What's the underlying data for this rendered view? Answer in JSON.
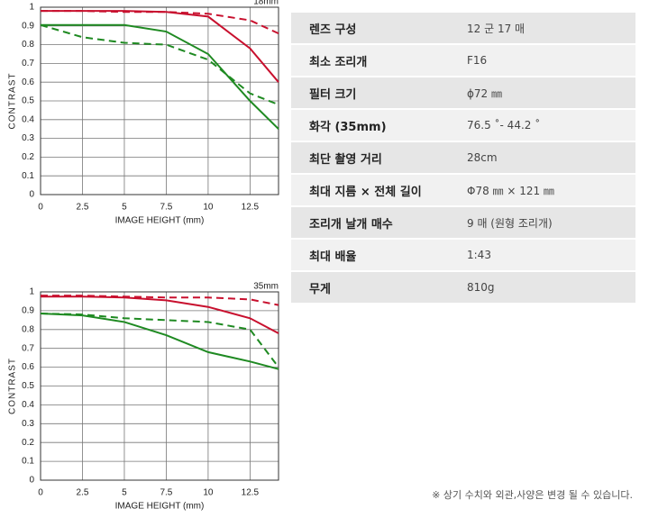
{
  "chart_data": [
    {
      "type": "line",
      "title": "18mm",
      "xlabel": "IMAGE HEIGHT (mm)",
      "ylabel": "CONTRAST",
      "x": [
        0,
        2.5,
        5,
        7.5,
        10,
        12.5,
        14.2
      ],
      "xlim": [
        0,
        14.2
      ],
      "xticks": [
        0,
        2.5,
        5,
        7.5,
        10,
        12.5
      ],
      "ylim": [
        0,
        1
      ],
      "yticks": [
        0,
        0.1,
        0.2,
        0.3,
        0.4,
        0.5,
        0.6,
        0.7,
        0.8,
        0.9,
        1
      ],
      "grid": true,
      "series": [
        {
          "color": "#c8102e",
          "dashed": false,
          "values": [
            0.98,
            0.98,
            0.98,
            0.975,
            0.95,
            0.78,
            0.6
          ]
        },
        {
          "color": "#c8102e",
          "dashed": true,
          "values": [
            0.98,
            0.98,
            0.975,
            0.975,
            0.965,
            0.93,
            0.86
          ]
        },
        {
          "color": "#1f8a22",
          "dashed": false,
          "values": [
            0.905,
            0.905,
            0.905,
            0.87,
            0.75,
            0.5,
            0.35
          ]
        },
        {
          "color": "#1f8a22",
          "dashed": true,
          "values": [
            0.905,
            0.84,
            0.81,
            0.8,
            0.72,
            0.54,
            0.48
          ]
        }
      ]
    },
    {
      "type": "line",
      "title": "35mm",
      "xlabel": "IMAGE HEIGHT (mm)",
      "ylabel": "CONTRAST",
      "x": [
        0,
        2.5,
        5,
        7.5,
        10,
        12.5,
        14.2
      ],
      "xlim": [
        0,
        14.2
      ],
      "xticks": [
        0,
        2.5,
        5,
        7.5,
        10,
        12.5
      ],
      "ylim": [
        0,
        1
      ],
      "yticks": [
        0,
        0.1,
        0.2,
        0.3,
        0.4,
        0.5,
        0.6,
        0.7,
        0.8,
        0.9,
        1
      ],
      "grid": true,
      "series": [
        {
          "color": "#c8102e",
          "dashed": false,
          "values": [
            0.975,
            0.975,
            0.97,
            0.955,
            0.92,
            0.86,
            0.78
          ]
        },
        {
          "color": "#c8102e",
          "dashed": true,
          "values": [
            0.98,
            0.98,
            0.975,
            0.97,
            0.97,
            0.96,
            0.93
          ]
        },
        {
          "color": "#1f8a22",
          "dashed": false,
          "values": [
            0.885,
            0.875,
            0.84,
            0.77,
            0.68,
            0.63,
            0.59
          ]
        },
        {
          "color": "#1f8a22",
          "dashed": true,
          "values": [
            0.885,
            0.88,
            0.86,
            0.85,
            0.84,
            0.8,
            0.6
          ]
        }
      ]
    }
  ],
  "specs": {
    "rows": [
      [
        "렌즈 구성",
        "12 군 17 매"
      ],
      [
        "최소 조리개",
        "F16"
      ],
      [
        "필터 크기",
        "ϕ72 ㎜"
      ],
      [
        "화각 (35mm)",
        "76.5 ˚- 44.2 ˚"
      ],
      [
        "최단 촬영 거리",
        "28cm"
      ],
      [
        "최대 지름 × 전체 길이",
        "Φ78 ㎜ × 121 ㎜"
      ],
      [
        "조리개 날개 매수",
        "9 매 (원형 조리개)"
      ],
      [
        "최대 배율",
        "1:43"
      ],
      [
        "무게",
        "810g"
      ]
    ]
  },
  "footnote": "※ 상기 수치와 외관,사양은 변경 될 수 있습니다."
}
